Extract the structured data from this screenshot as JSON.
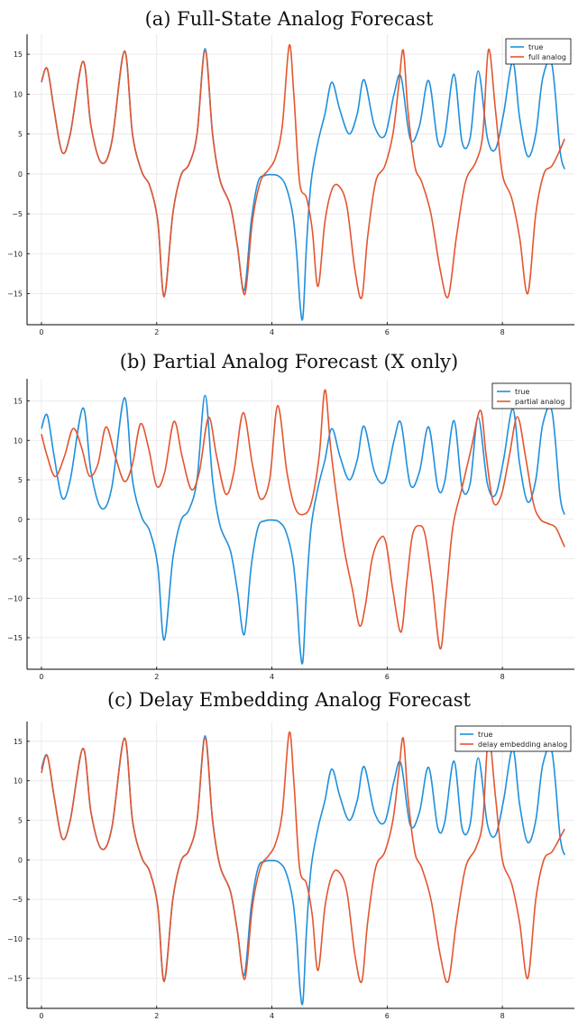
{
  "page": {
    "background": "#ffffff"
  },
  "colors": {
    "true": "#1f8fdc",
    "analog": "#e4552f",
    "grid": "#e6e6e6",
    "axis": "#000000"
  },
  "chart_data": [
    {
      "type": "line",
      "title": "(a) Full-State Analog Forecast",
      "xlim": [
        -0.25,
        9.25
      ],
      "ylim": [
        -18.9,
        17.5
      ],
      "xticks": [
        0,
        2,
        4,
        6,
        8
      ],
      "yticks": [
        -15,
        -10,
        -5,
        0,
        5,
        10,
        15
      ],
      "grid": true,
      "legend_position": "top-right",
      "series": [
        {
          "name": "true",
          "color": "#1f8fdc",
          "x": [
            0.0,
            0.1,
            0.22,
            0.36,
            0.5,
            0.72,
            0.86,
            1.04,
            1.22,
            1.44,
            1.58,
            1.74,
            1.88,
            2.02,
            2.13,
            2.28,
            2.42,
            2.56,
            2.7,
            2.84,
            2.97,
            3.1,
            3.28,
            3.4,
            3.52,
            3.64,
            3.76,
            3.88,
            4.0,
            4.12,
            4.24,
            4.36,
            4.43,
            4.49,
            4.54,
            4.6,
            4.68,
            4.8,
            4.92,
            5.04,
            5.18,
            5.34,
            5.48,
            5.6,
            5.78,
            5.96,
            6.12,
            6.24,
            6.4,
            6.56,
            6.72,
            6.88,
            7.0,
            7.16,
            7.3,
            7.44,
            7.58,
            7.74,
            7.88,
            8.02,
            8.18,
            8.3,
            8.44,
            8.58,
            8.7,
            8.86,
            9.0,
            9.08
          ],
          "y": [
            11.5,
            13.2,
            8.0,
            2.7,
            5.0,
            14.1,
            6.0,
            1.4,
            4.0,
            15.4,
            5.0,
            0.3,
            -1.5,
            -6.0,
            -15.3,
            -5.0,
            -0.2,
            1.2,
            5.0,
            15.7,
            5.0,
            -0.8,
            -4.0,
            -9.0,
            -14.6,
            -6.0,
            -1.0,
            -0.2,
            -0.1,
            -0.3,
            -1.5,
            -5.0,
            -10.0,
            -16.5,
            -17.8,
            -9.0,
            -1.0,
            4.0,
            7.5,
            11.5,
            8.0,
            5.0,
            7.5,
            11.8,
            6.0,
            4.8,
            10.0,
            12.2,
            4.4,
            6.0,
            11.7,
            4.0,
            4.8,
            12.5,
            4.0,
            4.5,
            12.9,
            4.5,
            3.1,
            7.5,
            14.0,
            7.0,
            2.2,
            5.0,
            12.0,
            13.7,
            3.0,
            0.6
          ]
        },
        {
          "name": "full analog",
          "color": "#e4552f",
          "x": [
            0.0,
            0.1,
            0.22,
            0.36,
            0.5,
            0.72,
            0.86,
            1.04,
            1.22,
            1.44,
            1.58,
            1.74,
            1.88,
            2.02,
            2.13,
            2.28,
            2.42,
            2.56,
            2.7,
            2.84,
            2.97,
            3.1,
            3.28,
            3.4,
            3.53,
            3.66,
            3.8,
            3.94,
            4.06,
            4.18,
            4.3,
            4.38,
            4.48,
            4.6,
            4.7,
            4.8,
            4.92,
            5.04,
            5.16,
            5.3,
            5.44,
            5.56,
            5.66,
            5.8,
            5.96,
            6.1,
            6.2,
            6.28,
            6.36,
            6.48,
            6.6,
            6.76,
            6.92,
            7.06,
            7.2,
            7.36,
            7.54,
            7.66,
            7.76,
            7.88,
            8.0,
            8.16,
            8.3,
            8.44,
            8.58,
            8.72,
            8.86,
            9.0,
            9.08
          ],
          "y": [
            11.5,
            13.2,
            8.0,
            2.7,
            5.0,
            14.1,
            6.0,
            1.4,
            4.0,
            15.4,
            5.0,
            0.3,
            -1.5,
            -6.0,
            -15.4,
            -5.0,
            -0.2,
            1.2,
            5.0,
            15.4,
            5.0,
            -0.8,
            -4.0,
            -9.0,
            -15.1,
            -6.0,
            -1.0,
            0.5,
            2.0,
            6.0,
            16.1,
            10.0,
            -1.0,
            -3.0,
            -7.0,
            -14.1,
            -6.0,
            -2.0,
            -1.5,
            -4.0,
            -12.0,
            -15.5,
            -8.0,
            -1.0,
            1.0,
            5.0,
            11.0,
            15.5,
            8.0,
            1.0,
            -1.0,
            -5.0,
            -12.0,
            -15.4,
            -8.0,
            -1.0,
            1.5,
            5.0,
            15.6,
            8.0,
            0.0,
            -3.0,
            -8.0,
            -15.0,
            -5.0,
            0.0,
            1.0,
            3.0,
            4.4
          ]
        }
      ]
    },
    {
      "type": "line",
      "title": "(b) Partial Analog Forecast (X only)",
      "xlim": [
        -0.25,
        9.25
      ],
      "ylim": [
        -19.0,
        17.8
      ],
      "xticks": [
        0,
        2,
        4,
        6,
        8
      ],
      "yticks": [
        -15,
        -10,
        -5,
        0,
        5,
        10,
        15
      ],
      "grid": true,
      "legend_position": "top-right",
      "series": [
        {
          "name": "true",
          "color": "#1f8fdc",
          "x": [
            0.0,
            0.1,
            0.22,
            0.36,
            0.5,
            0.72,
            0.86,
            1.04,
            1.22,
            1.44,
            1.58,
            1.74,
            1.88,
            2.02,
            2.13,
            2.28,
            2.42,
            2.56,
            2.7,
            2.84,
            2.97,
            3.1,
            3.28,
            3.4,
            3.52,
            3.64,
            3.76,
            3.88,
            4.0,
            4.12,
            4.24,
            4.36,
            4.43,
            4.49,
            4.54,
            4.6,
            4.68,
            4.8,
            4.92,
            5.04,
            5.18,
            5.34,
            5.48,
            5.6,
            5.78,
            5.96,
            6.12,
            6.24,
            6.4,
            6.56,
            6.72,
            6.88,
            7.0,
            7.16,
            7.3,
            7.44,
            7.58,
            7.74,
            7.88,
            8.02,
            8.18,
            8.3,
            8.44,
            8.58,
            8.7,
            8.86,
            9.0,
            9.08
          ],
          "y": [
            11.5,
            13.2,
            8.0,
            2.7,
            5.0,
            14.1,
            6.0,
            1.4,
            4.0,
            15.4,
            5.0,
            0.3,
            -1.5,
            -6.0,
            -15.3,
            -5.0,
            -0.2,
            1.2,
            5.0,
            15.7,
            5.0,
            -0.8,
            -4.0,
            -9.0,
            -14.6,
            -6.0,
            -1.0,
            -0.2,
            -0.1,
            -0.3,
            -1.5,
            -5.0,
            -10.0,
            -16.5,
            -17.8,
            -9.0,
            -1.0,
            4.0,
            7.5,
            11.5,
            8.0,
            5.0,
            7.5,
            11.8,
            6.0,
            4.8,
            10.0,
            12.2,
            4.4,
            6.0,
            11.7,
            4.0,
            4.8,
            12.5,
            4.0,
            4.5,
            12.9,
            4.5,
            3.1,
            7.5,
            14.0,
            7.0,
            2.2,
            5.0,
            12.0,
            13.7,
            3.0,
            0.6
          ]
        },
        {
          "name": "partial analog",
          "color": "#e4552f",
          "x": [
            0.0,
            0.1,
            0.24,
            0.4,
            0.55,
            0.7,
            0.83,
            0.98,
            1.12,
            1.28,
            1.44,
            1.58,
            1.72,
            1.86,
            2.0,
            2.14,
            2.3,
            2.44,
            2.6,
            2.74,
            2.9,
            3.04,
            3.2,
            3.34,
            3.5,
            3.66,
            3.8,
            3.96,
            4.1,
            4.26,
            4.4,
            4.54,
            4.68,
            4.82,
            4.92,
            5.02,
            5.14,
            5.26,
            5.4,
            5.52,
            5.62,
            5.74,
            5.88,
            5.98,
            6.1,
            6.24,
            6.34,
            6.44,
            6.56,
            6.66,
            6.78,
            6.92,
            7.02,
            7.14,
            7.3,
            7.46,
            7.62,
            7.72,
            7.84,
            7.98,
            8.12,
            8.26,
            8.4,
            8.54,
            8.66,
            8.78,
            8.92,
            9.02,
            9.08
          ],
          "y": [
            10.8,
            8.0,
            5.4,
            8.0,
            11.5,
            9.0,
            5.5,
            7.0,
            11.7,
            8.0,
            4.8,
            7.0,
            12.1,
            9.0,
            4.2,
            6.0,
            12.4,
            8.0,
            3.8,
            6.0,
            12.9,
            8.0,
            3.2,
            6.0,
            13.5,
            7.0,
            2.6,
            5.0,
            14.4,
            6.0,
            1.5,
            0.6,
            2.0,
            8.0,
            16.4,
            9.0,
            2.0,
            -4.0,
            -9.0,
            -13.5,
            -11.0,
            -5.0,
            -2.4,
            -3.0,
            -9.0,
            -14.3,
            -8.0,
            -2.0,
            -0.8,
            -2.0,
            -8.0,
            -16.4,
            -10.0,
            -1.0,
            4.0,
            9.0,
            13.8,
            8.0,
            2.2,
            3.0,
            8.0,
            13.0,
            8.0,
            2.0,
            0.0,
            -0.5,
            -1.0,
            -2.5,
            -3.5
          ]
        }
      ]
    },
    {
      "type": "line",
      "title": "(c) Delay Embedding Analog Forecast",
      "xlim": [
        -0.25,
        9.25
      ],
      "ylim": [
        -18.8,
        17.5
      ],
      "xticks": [
        0,
        2,
        4,
        6,
        8
      ],
      "yticks": [
        -15,
        -10,
        -5,
        0,
        5,
        10,
        15
      ],
      "grid": true,
      "legend_position": "top-right",
      "series": [
        {
          "name": "true",
          "color": "#1f8fdc",
          "x": [
            0.0,
            0.1,
            0.22,
            0.36,
            0.5,
            0.72,
            0.86,
            1.04,
            1.22,
            1.44,
            1.58,
            1.74,
            1.88,
            2.02,
            2.13,
            2.28,
            2.42,
            2.56,
            2.7,
            2.84,
            2.97,
            3.1,
            3.28,
            3.4,
            3.52,
            3.64,
            3.76,
            3.88,
            4.0,
            4.12,
            4.24,
            4.36,
            4.43,
            4.49,
            4.54,
            4.6,
            4.68,
            4.8,
            4.92,
            5.04,
            5.18,
            5.34,
            5.48,
            5.6,
            5.78,
            5.96,
            6.12,
            6.24,
            6.4,
            6.56,
            6.72,
            6.88,
            7.0,
            7.16,
            7.3,
            7.44,
            7.58,
            7.74,
            7.88,
            8.02,
            8.18,
            8.3,
            8.44,
            8.58,
            8.7,
            8.86,
            9.0,
            9.08
          ],
          "y": [
            11.5,
            13.2,
            8.0,
            2.7,
            5.0,
            14.1,
            6.0,
            1.4,
            4.0,
            15.4,
            5.0,
            0.3,
            -1.5,
            -6.0,
            -15.3,
            -5.0,
            -0.2,
            1.2,
            5.0,
            15.7,
            5.0,
            -0.8,
            -4.0,
            -9.0,
            -14.6,
            -6.0,
            -1.0,
            -0.2,
            -0.1,
            -0.3,
            -1.5,
            -5.0,
            -10.0,
            -16.5,
            -17.8,
            -9.0,
            -1.0,
            4.0,
            7.5,
            11.5,
            8.0,
            5.0,
            7.5,
            11.8,
            6.0,
            4.8,
            10.0,
            12.2,
            4.4,
            6.0,
            11.7,
            4.0,
            4.8,
            12.5,
            4.0,
            4.5,
            12.9,
            4.5,
            3.1,
            7.5,
            14.0,
            7.0,
            2.2,
            5.0,
            12.0,
            13.7,
            3.0,
            0.6
          ]
        },
        {
          "name": "delay embedding analog",
          "color": "#e4552f",
          "x": [
            0.0,
            0.1,
            0.22,
            0.36,
            0.5,
            0.72,
            0.86,
            1.04,
            1.22,
            1.44,
            1.58,
            1.74,
            1.88,
            2.02,
            2.13,
            2.28,
            2.42,
            2.56,
            2.7,
            2.84,
            2.97,
            3.1,
            3.28,
            3.4,
            3.53,
            3.66,
            3.8,
            3.94,
            4.06,
            4.18,
            4.3,
            4.38,
            4.48,
            4.6,
            4.7,
            4.8,
            4.92,
            5.04,
            5.16,
            5.3,
            5.44,
            5.56,
            5.66,
            5.8,
            5.96,
            6.1,
            6.2,
            6.28,
            6.36,
            6.48,
            6.6,
            6.76,
            6.92,
            7.06,
            7.2,
            7.36,
            7.54,
            7.66,
            7.76,
            7.88,
            8.0,
            8.16,
            8.3,
            8.44,
            8.58,
            8.72,
            8.86,
            9.0,
            9.08
          ],
          "y": [
            11.0,
            13.2,
            8.0,
            2.7,
            5.0,
            14.1,
            6.0,
            1.4,
            4.0,
            15.4,
            5.0,
            0.3,
            -1.5,
            -6.0,
            -15.4,
            -5.0,
            -0.2,
            1.2,
            5.0,
            15.4,
            5.0,
            -0.8,
            -4.0,
            -9.0,
            -15.1,
            -6.0,
            -1.0,
            0.5,
            2.0,
            6.0,
            16.1,
            10.0,
            -1.0,
            -3.0,
            -7.0,
            -14.0,
            -6.0,
            -2.0,
            -1.5,
            -4.0,
            -12.0,
            -15.4,
            -8.0,
            -1.0,
            1.0,
            5.0,
            11.0,
            15.4,
            8.0,
            1.0,
            -1.0,
            -5.0,
            -12.0,
            -15.4,
            -8.0,
            -1.0,
            1.5,
            5.0,
            15.6,
            8.0,
            0.0,
            -3.0,
            -8.0,
            -15.0,
            -5.0,
            0.0,
            1.0,
            2.8,
            3.9
          ]
        }
      ]
    }
  ]
}
